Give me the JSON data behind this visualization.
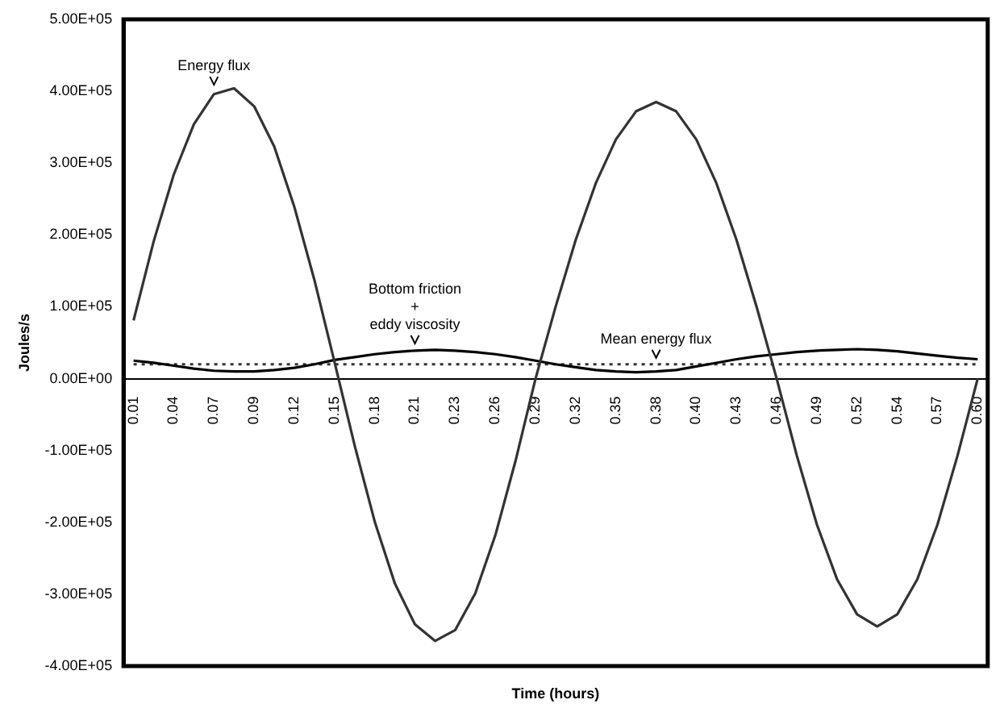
{
  "chart_data": {
    "type": "line",
    "xlabel": "Time (hours)",
    "ylabel": "Joules/s",
    "categories": [
      "0.01",
      null,
      "0.04",
      null,
      "0.07",
      null,
      "0.09",
      null,
      "0.12",
      null,
      "0.15",
      null,
      "0.18",
      null,
      "0.21",
      null,
      "0.23",
      null,
      "0.26",
      null,
      "0.29",
      null,
      "0.32",
      null,
      "0.35",
      null,
      "0.38",
      null,
      "0.40",
      null,
      "0.43",
      null,
      "0.46",
      null,
      "0.49",
      null,
      "0.52",
      null,
      "0.54",
      null,
      "0.57",
      null,
      "0.60"
    ],
    "series": [
      {
        "color": "#333333",
        "line_style": "solid",
        "values": [
          81000,
          191000,
          284000,
          354000,
          396000,
          404000,
          379000,
          323000,
          239000,
          137000,
          23000,
          -93000,
          -199000,
          -285000,
          -342000,
          -365000,
          -350000,
          -299000,
          -218000,
          -115000,
          0,
          100000,
          193000,
          272000,
          333000,
          372000,
          385000,
          372000,
          333000,
          272000,
          193000,
          100000,
          0,
          -107000,
          -203000,
          -279000,
          -328000,
          -345000,
          -328000,
          -279000,
          -203000,
          -107000,
          0
        ]
      },
      {
        "color": "#000000",
        "line_style": "solid",
        "values": [
          25000,
          22000,
          18000,
          14000,
          11000,
          10000,
          10000,
          12000,
          15000,
          20000,
          26000,
          30000,
          34000,
          37000,
          39000,
          40000,
          39000,
          37000,
          34000,
          30000,
          25000,
          20000,
          16000,
          12000,
          10000,
          9000,
          10000,
          12000,
          17000,
          22000,
          27000,
          31000,
          34000,
          37000,
          39000,
          40000,
          41000,
          40000,
          38000,
          35000,
          32000,
          29000,
          27000
        ]
      },
      {
        "color": "#333333",
        "line_style": "dotted",
        "values": [
          20000,
          20000,
          20000,
          20000,
          20000,
          20000,
          20000,
          20000,
          20000,
          20000,
          20000,
          20000,
          20000,
          20000,
          20000,
          20000,
          20000,
          20000,
          20000,
          20000,
          20000,
          20000,
          20000,
          20000,
          20000,
          20000,
          20000,
          20000,
          20000,
          20000,
          20000,
          20000,
          20000,
          20000,
          20000,
          20000,
          20000,
          20000,
          20000,
          20000,
          20000,
          20000,
          20000
        ]
      }
    ],
    "ylim": [
      -400000,
      500000
    ],
    "yticks": [
      {
        "value": -400000,
        "label": "-4.00E+05"
      },
      {
        "value": -300000,
        "label": "-3.00E+05"
      },
      {
        "value": -200000,
        "label": "-2.00E+05"
      },
      {
        "value": -100000,
        "label": "-1.00E+05"
      },
      {
        "value": 0,
        "label": "0.00E+00"
      },
      {
        "value": 100000,
        "label": "1.00E+05"
      },
      {
        "value": 200000,
        "label": "2.00E+05"
      },
      {
        "value": 300000,
        "label": "3.00E+05"
      },
      {
        "value": 400000,
        "label": "4.00E+05"
      },
      {
        "value": 500000,
        "label": "5.00E+05"
      }
    ],
    "annotations": [
      {
        "text": "Energy flux",
        "x": "0.07",
        "y": 400000
      },
      {
        "text": "Bottom friction\n+\neddy viscosity",
        "x": "0.21",
        "y": 40000
      },
      {
        "text": "Mean energy flux",
        "x": "0.38",
        "y": 20000
      }
    ],
    "marker": "none",
    "grid": false,
    "legend": false
  }
}
